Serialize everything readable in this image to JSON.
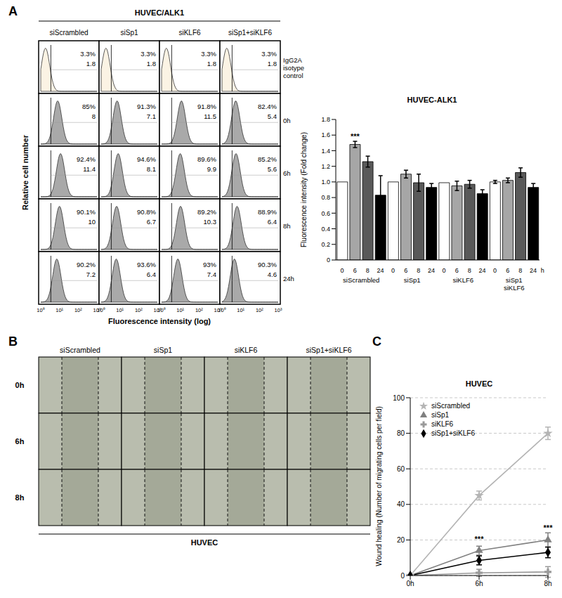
{
  "panel_labels": [
    "A",
    "B",
    "C"
  ],
  "flow_cytometry": {
    "title": "HUVEC/ALK1",
    "columns": [
      "siScrambled",
      "siSp1",
      "siKLF6",
      "siSp1+siKLF6"
    ],
    "rows": [
      {
        "label": "IgG2A isotype control",
        "cells": [
          {
            "percent": "3.3%",
            "mfi": 1.8
          },
          {
            "percent": "3.3%",
            "mfi": 1.8
          },
          {
            "percent": "3.3%",
            "mfi": 1.8
          },
          {
            "percent": "3.3%",
            "mfi": 1.8
          }
        ]
      },
      {
        "label": "0h",
        "cells": [
          {
            "percent": "85%",
            "mfi": 8
          },
          {
            "percent": "91.3%",
            "mfi": 7.1
          },
          {
            "percent": "91.8%",
            "mfi": 11.5
          },
          {
            "percent": "82.4%",
            "mfi": 5.4
          }
        ]
      },
      {
        "label": "6h",
        "cells": [
          {
            "percent": "92.4%",
            "mfi": 11.4
          },
          {
            "percent": "94.6%",
            "mfi": 8.1
          },
          {
            "percent": "89.6%",
            "mfi": 9.9
          },
          {
            "percent": "85.2%",
            "mfi": 5.6
          }
        ]
      },
      {
        "label": "8h",
        "cells": [
          {
            "percent": "90.1%",
            "mfi": 10
          },
          {
            "percent": "90.8%",
            "mfi": 6.7
          },
          {
            "percent": "89.2%",
            "mfi": 10.3
          },
          {
            "percent": "88.9%",
            "mfi": 6.4
          }
        ]
      },
      {
        "label": "24h",
        "cells": [
          {
            "percent": "90.2%",
            "mfi": 7.2
          },
          {
            "percent": "93.6%",
            "mfi": 6.4
          },
          {
            "percent": "93%",
            "mfi": 7.4
          },
          {
            "percent": "90.3%",
            "mfi": 4.6
          }
        ]
      }
    ],
    "y_label": "Relative cell number",
    "x_label": "Fluorescence intensity (log)",
    "log": "x",
    "xlim": [
      1,
      1000
    ],
    "xticks": [
      {
        "value": 1,
        "label": "10⁰"
      },
      {
        "value": 10,
        "label": "10¹"
      },
      {
        "value": 100,
        "label": "10²"
      },
      {
        "value": 1000,
        "label": "10³"
      }
    ]
  },
  "wound_healing_images": {
    "columns": [
      "siScrambled",
      "siSp1",
      "siKLF6",
      "siSp1+siKLF6"
    ],
    "rows": [
      "0h",
      "6h",
      "8h"
    ],
    "caption": "HUVEC"
  },
  "chart_data": [
    {
      "type": "bar",
      "title": "HUVEC-ALK1",
      "y_label": "Fluorescence intensity (Fold change)",
      "categories": [
        "0",
        "6",
        "8",
        "24",
        "0",
        "6",
        "8",
        "24",
        "0",
        "6",
        "8",
        "24",
        "0",
        "6",
        "8",
        "24"
      ],
      "x_unit": "h",
      "groups": [
        "siScrambled",
        "siSp1",
        "siKLF6",
        "siSp1 siKLF6"
      ],
      "values": [
        1.0,
        1.48,
        1.26,
        0.83,
        1.0,
        1.1,
        0.99,
        0.93,
        0.99,
        0.95,
        0.97,
        0.85,
        1.0,
        1.02,
        1.12,
        0.93
      ],
      "errors": [
        0,
        0.04,
        0.07,
        0.25,
        0,
        0.05,
        0.11,
        0.05,
        0,
        0.06,
        0.05,
        0.05,
        0.02,
        0.03,
        0.06,
        0.05
      ],
      "colors": [
        "#ffffff",
        "#a6a6a6",
        "#595959",
        "#000000",
        "#ffffff",
        "#a6a6a6",
        "#595959",
        "#000000",
        "#ffffff",
        "#a6a6a6",
        "#595959",
        "#000000",
        "#ffffff",
        "#a6a6a6",
        "#595959",
        "#000000"
      ],
      "ylim": [
        0,
        1.8
      ],
      "yticks": [
        0,
        0.2,
        0.4,
        0.6,
        0.8,
        {
          "value": 1,
          "label": "1.0"
        },
        1.2,
        1.4,
        1.6,
        1.8
      ],
      "annotations": [
        {
          "text": "***",
          "index": 1
        }
      ]
    },
    {
      "type": "line",
      "title": "HUVEC",
      "y_label": "Wound healing (Number of migrating cells per field)",
      "categories": [
        "0h",
        "6h",
        "8h"
      ],
      "series": [
        {
          "name": "siScrambled",
          "color": "#b4b4b4",
          "marker": "star",
          "line_style": "solid",
          "values": [
            0,
            45,
            80
          ],
          "errors": [
            0,
            2.5,
            3.5
          ]
        },
        {
          "name": "siSp1",
          "color": "#808080",
          "marker": "triangle",
          "line_style": "solid",
          "values": [
            0,
            14,
            20
          ],
          "errors": [
            0,
            2.5,
            4
          ]
        },
        {
          "name": "siKLF6",
          "color": "#999999",
          "marker": "cross",
          "line_style": "solid",
          "values": [
            0,
            1.5,
            2
          ],
          "errors": [
            0,
            2,
            3
          ]
        },
        {
          "name": "siSp1+siKLF6",
          "color": "#000000",
          "marker": "diamond",
          "line_style": "solid",
          "values": [
            0,
            8.5,
            13
          ],
          "errors": [
            0,
            2.5,
            3
          ]
        }
      ],
      "ylim": [
        0,
        100
      ],
      "yticks": [
        0,
        20,
        40,
        60,
        80,
        100
      ],
      "grid": true,
      "legend": "upper left",
      "annotations": [
        {
          "text": "***",
          "series": "siSp1",
          "category": "6h"
        },
        {
          "text": "***",
          "series": "siSp1",
          "category": "8h"
        }
      ]
    }
  ]
}
